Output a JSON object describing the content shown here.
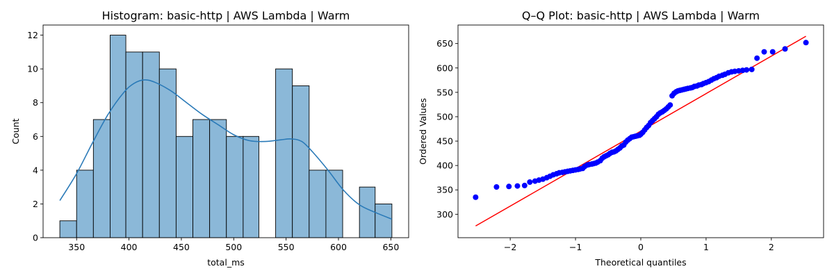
{
  "figure": {
    "background": "#ffffff"
  },
  "chart_data": [
    {
      "type": "bar",
      "subtype": "histogram",
      "title": "Histogram: basic-http | AWS Lambda | Warm",
      "xlabel": "total_ms",
      "ylabel": "Count",
      "xlim": [
        318,
        667
      ],
      "ylim": [
        0,
        12.6
      ],
      "xticks": [
        350,
        400,
        450,
        500,
        550,
        600,
        650
      ],
      "yticks": [
        0,
        2,
        4,
        6,
        8,
        10,
        12
      ],
      "grid": false,
      "bins": [
        {
          "x0": 334,
          "x1": 350,
          "count": 1
        },
        {
          "x0": 350,
          "x1": 366,
          "count": 4
        },
        {
          "x0": 366,
          "x1": 382,
          "count": 7
        },
        {
          "x0": 382,
          "x1": 397,
          "count": 12
        },
        {
          "x0": 397,
          "x1": 413,
          "count": 11
        },
        {
          "x0": 413,
          "x1": 429,
          "count": 11
        },
        {
          "x0": 429,
          "x1": 445,
          "count": 10
        },
        {
          "x0": 445,
          "x1": 461,
          "count": 6
        },
        {
          "x0": 461,
          "x1": 477,
          "count": 7
        },
        {
          "x0": 477,
          "x1": 493,
          "count": 7
        },
        {
          "x0": 493,
          "x1": 509,
          "count": 6
        },
        {
          "x0": 509,
          "x1": 524,
          "count": 6
        },
        {
          "x0": 524,
          "x1": 540,
          "count": 0
        },
        {
          "x0": 540,
          "x1": 556,
          "count": 10
        },
        {
          "x0": 556,
          "x1": 572,
          "count": 9
        },
        {
          "x0": 572,
          "x1": 588,
          "count": 4
        },
        {
          "x0": 588,
          "x1": 604,
          "count": 4
        },
        {
          "x0": 604,
          "x1": 620,
          "count": 0
        },
        {
          "x0": 620,
          "x1": 635,
          "count": 3
        },
        {
          "x0": 635,
          "x1": 651,
          "count": 2
        }
      ],
      "kde": {
        "x": [
          334,
          350,
          365,
          380,
          395,
          405,
          415,
          425,
          440,
          455,
          470,
          485,
          500,
          515,
          530,
          545,
          555,
          565,
          575,
          590,
          605,
          620,
          635,
          651
        ],
        "y": [
          2.2,
          3.8,
          5.6,
          7.3,
          8.6,
          9.15,
          9.35,
          9.2,
          8.7,
          8.0,
          7.3,
          6.7,
          6.1,
          5.75,
          5.7,
          5.8,
          5.85,
          5.7,
          5.1,
          4.0,
          2.8,
          1.95,
          1.5,
          1.1
        ]
      },
      "colors": {
        "bar_fill": "#8bb8d8",
        "bar_edge": "#000000",
        "kde_line": "#2a7ab8"
      }
    },
    {
      "type": "scatter",
      "subtype": "qq-plot",
      "title": "Q–Q Plot: basic-http | AWS Lambda | Warm",
      "xlabel": "Theoretical quantiles",
      "ylabel": "Ordered Values",
      "xlim": [
        -2.8,
        2.8
      ],
      "ylim": [
        252,
        688
      ],
      "xticks": [
        -2,
        -1,
        0,
        1,
        2
      ],
      "yticks": [
        300,
        350,
        400,
        450,
        500,
        550,
        600,
        650
      ],
      "grid": false,
      "fit_line": {
        "x": [
          -2.53,
          2.53
        ],
        "y": [
          276,
          665
        ]
      },
      "points": {
        "x": [
          -2.53,
          -2.21,
          -2.02,
          -1.89,
          -1.78,
          -1.7,
          -1.62,
          -1.56,
          -1.5,
          -1.44,
          -1.39,
          -1.34,
          -1.29,
          -1.25,
          -1.2,
          -1.16,
          -1.12,
          -1.08,
          -1.04,
          -1.0,
          -0.96,
          -0.93,
          -0.89,
          -0.86,
          -0.82,
          -0.79,
          -0.75,
          -0.72,
          -0.69,
          -0.66,
          -0.62,
          -0.59,
          -0.56,
          -0.53,
          -0.5,
          -0.47,
          -0.44,
          -0.41,
          -0.38,
          -0.35,
          -0.32,
          -0.29,
          -0.26,
          -0.23,
          -0.2,
          -0.17,
          -0.14,
          -0.11,
          -0.08,
          -0.05,
          -0.02,
          0.0,
          0.03,
          0.06,
          0.09,
          0.12,
          0.15,
          0.18,
          0.21,
          0.24,
          0.27,
          0.3,
          0.33,
          0.36,
          0.39,
          0.42,
          0.45,
          0.48,
          0.51,
          0.54,
          0.57,
          0.6,
          0.63,
          0.66,
          0.69,
          0.72,
          0.76,
          0.79,
          0.82,
          0.86,
          0.89,
          0.93,
          0.96,
          1.0,
          1.04,
          1.08,
          1.12,
          1.16,
          1.2,
          1.25,
          1.29,
          1.34,
          1.39,
          1.44,
          1.5,
          1.56,
          1.62,
          1.7,
          1.78,
          1.89,
          2.02,
          2.21,
          2.53
        ],
        "y": [
          335,
          356,
          357,
          358,
          359,
          366,
          368,
          370,
          372,
          375,
          378,
          381,
          383,
          385,
          386,
          387,
          388,
          389,
          390,
          391,
          392,
          393,
          394,
          398,
          401,
          402,
          403,
          404,
          405,
          407,
          410,
          415,
          418,
          420,
          422,
          425,
          427,
          428,
          430,
          433,
          436,
          440,
          442,
          448,
          452,
          455,
          458,
          459,
          460,
          461,
          462,
          464,
          468,
          473,
          478,
          482,
          488,
          492,
          496,
          500,
          505,
          508,
          510,
          513,
          516,
          520,
          524,
          543,
          548,
          551,
          553,
          554,
          555,
          556,
          557,
          558,
          559,
          560,
          562,
          563,
          565,
          566,
          568,
          570,
          572,
          575,
          578,
          580,
          583,
          585,
          587,
          590,
          592,
          593,
          594,
          595,
          596,
          597,
          620,
          633,
          633,
          639,
          652
        ]
      },
      "colors": {
        "points": "#0000ff",
        "line": "#ff0000"
      }
    }
  ]
}
